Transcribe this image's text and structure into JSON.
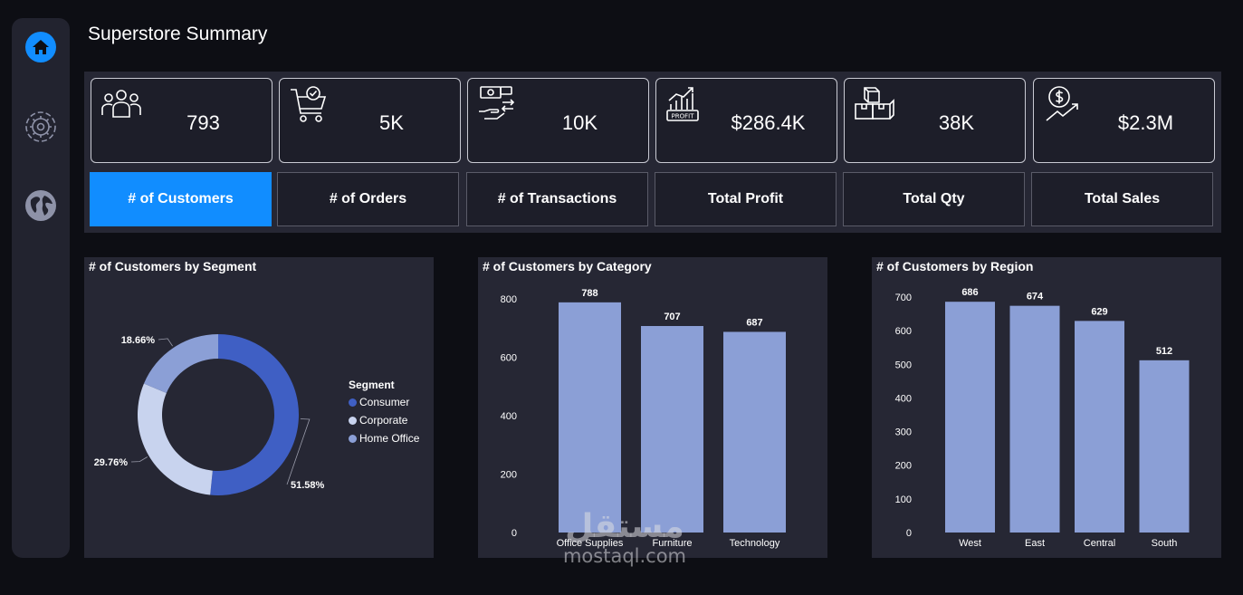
{
  "page": {
    "title": "Superstore Summary"
  },
  "sidebar": {
    "items": [
      {
        "icon": "home-icon",
        "active": true
      },
      {
        "icon": "gear-icon",
        "active": false
      },
      {
        "icon": "globe-icon",
        "active": false
      }
    ]
  },
  "kpis": [
    {
      "icon": "customers-icon",
      "value": "793",
      "label": "# of Customers",
      "active": true
    },
    {
      "icon": "cart-icon",
      "value": "5K",
      "label": "# of Orders",
      "active": false
    },
    {
      "icon": "money-transfer-icon",
      "value": "10K",
      "label": "# of Transactions",
      "active": false
    },
    {
      "icon": "profit-chart-icon",
      "value": "$286.4K",
      "label": "Total Profit",
      "active": false
    },
    {
      "icon": "boxes-icon",
      "value": "38K",
      "label": "Total Qty",
      "active": false
    },
    {
      "icon": "dollar-growth-icon",
      "value": "$2.3M",
      "label": "Total Sales",
      "active": false
    }
  ],
  "colors": {
    "accent": "#118dff",
    "bar": "#8b9fd6",
    "consumer": "#3f5fc4",
    "corporate": "#c8d3ee",
    "home_office": "#8b9fd6"
  },
  "chart_data": [
    {
      "type": "pie",
      "title": "# of Customers by Segment",
      "legend_title": "Segment",
      "legend_position": "right",
      "categories": [
        "Consumer",
        "Corporate",
        "Home Office"
      ],
      "values": [
        51.58,
        29.76,
        18.66
      ],
      "data_labels": [
        "51.58%",
        "29.76%",
        "18.66%"
      ]
    },
    {
      "type": "bar",
      "title": "# of Customers by Category",
      "categories": [
        "Office Supplies",
        "Furniture",
        "Technology"
      ],
      "values": [
        788,
        707,
        687
      ],
      "yticks": [
        0,
        200,
        400,
        600,
        800
      ],
      "ylim": [
        0,
        800
      ],
      "grid": false
    },
    {
      "type": "bar",
      "title": "# of Customers by Region",
      "categories": [
        "West",
        "East",
        "Central",
        "South"
      ],
      "values": [
        686,
        674,
        629,
        512
      ],
      "yticks": [
        0,
        100,
        200,
        300,
        400,
        500,
        600,
        700
      ],
      "ylim": [
        0,
        700
      ],
      "grid": false
    }
  ],
  "watermark": {
    "arabic": "مستقل",
    "url": "mostaql.com"
  }
}
